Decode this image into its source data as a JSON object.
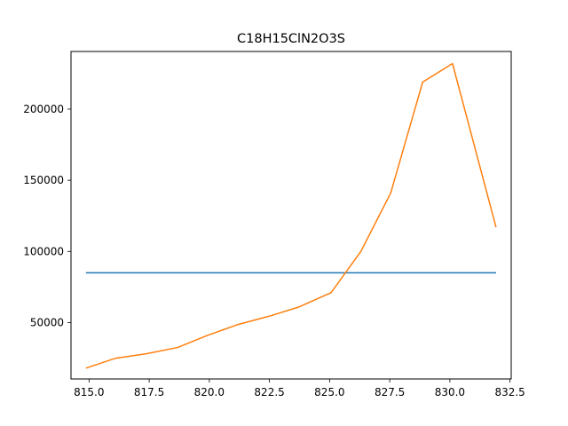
{
  "chart_data": {
    "type": "line",
    "title": "C18H15ClN2O3S",
    "xlabel": "",
    "ylabel": "",
    "xlim": [
      814.25,
      832.55
    ],
    "ylim": [
      10400,
      240500
    ],
    "xticks": [
      815.0,
      817.5,
      820.0,
      822.5,
      825.0,
      827.5,
      830.0,
      832.5
    ],
    "xtick_labels": [
      "815.0",
      "817.5",
      "820.0",
      "822.5",
      "825.0",
      "827.5",
      "830.0",
      "832.5"
    ],
    "yticks": [
      50000,
      100000,
      150000,
      200000
    ],
    "ytick_labels": [
      "50000",
      "100000",
      "150000",
      "200000"
    ],
    "grid": false,
    "legend": "none",
    "series": [
      {
        "color": "#1f77b4",
        "x": [
          814.87,
          831.92
        ],
        "y": [
          85000,
          85000
        ]
      },
      {
        "color": "#ff7f0e",
        "x": [
          814.87,
          816.11,
          817.35,
          818.68,
          819.92,
          821.16,
          822.49,
          823.73,
          825.06,
          826.3,
          827.54,
          828.87,
          830.11,
          831.92
        ],
        "y": [
          18000,
          25000,
          28000,
          32500,
          41000,
          48500,
          54500,
          61000,
          71000,
          100000,
          141000,
          219000,
          232000,
          117000
        ]
      }
    ]
  }
}
